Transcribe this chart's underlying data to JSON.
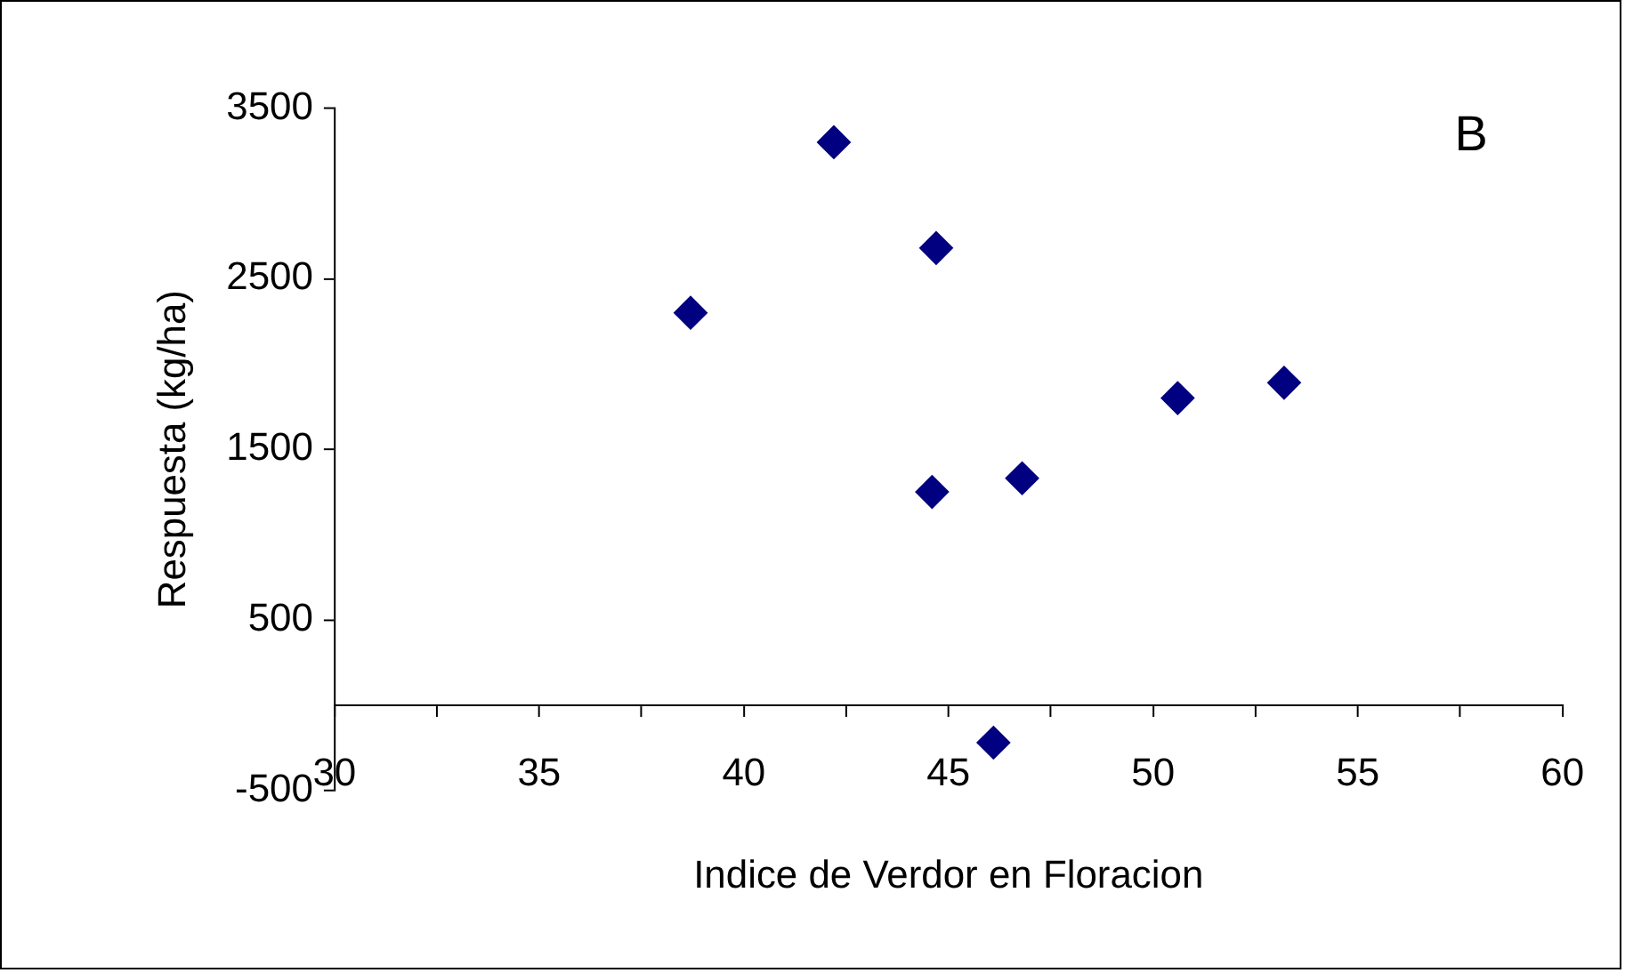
{
  "chart_data": {
    "type": "scatter",
    "xlabel": "Indice de Verdor en Floracion",
    "ylabel": "Respuesta (kg/ha)",
    "annotations": [
      "B"
    ],
    "x": [
      38.7,
      42.2,
      44.7,
      44.6,
      46.8,
      46.1,
      50.6,
      53.2
    ],
    "series": [
      {
        "color": "#000080",
        "values": [
          2300,
          3300,
          2680,
          1250,
          1330,
          -220,
          1800,
          1890
        ]
      }
    ],
    "marker": "diamond",
    "grid": false,
    "legend": false,
    "xlim": [
      30,
      60
    ],
    "xticks": [
      30,
      {
        "value": 32.5,
        "label": null
      },
      35,
      {
        "value": 37.5,
        "label": null
      },
      40,
      {
        "value": 42.5,
        "label": null
      },
      45,
      {
        "value": 47.5,
        "label": null
      },
      50,
      {
        "value": 52.5,
        "label": null
      },
      55,
      {
        "value": 57.5,
        "label": null
      },
      60
    ],
    "ylim": [
      -500,
      3500
    ],
    "yticks": [
      -500,
      500,
      1500,
      2500,
      3500
    ]
  }
}
